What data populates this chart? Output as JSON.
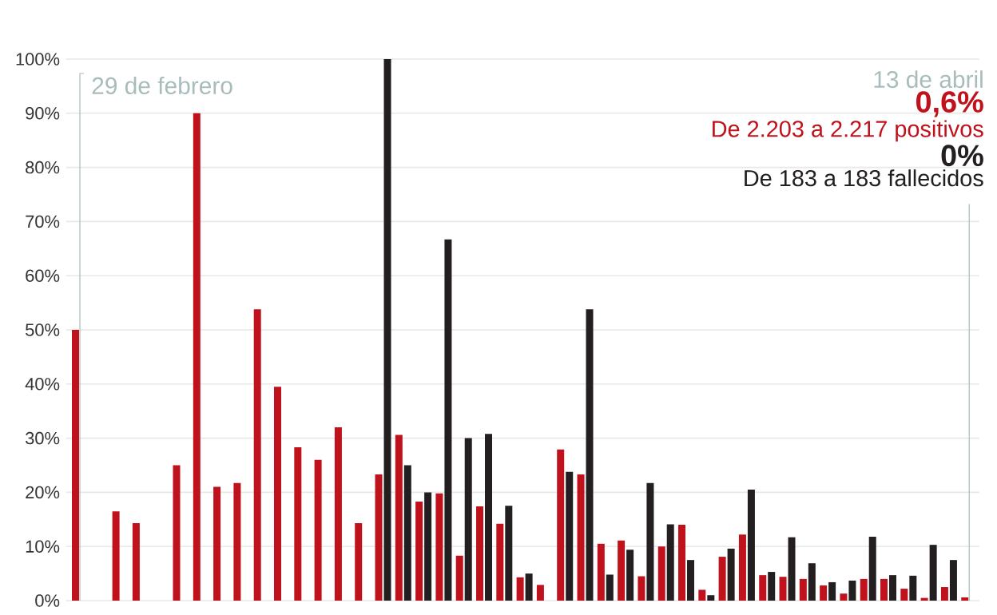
{
  "chart_data": {
    "type": "bar",
    "categories": [
      null,
      null,
      null,
      null,
      null,
      null,
      null,
      null,
      null,
      null,
      null,
      null,
      null,
      null,
      null,
      null,
      null,
      null,
      null,
      null,
      null,
      null,
      null,
      null,
      null,
      null,
      null,
      null,
      null,
      null,
      null,
      null,
      null,
      null,
      null,
      null,
      null,
      null,
      null,
      null,
      null,
      null,
      null,
      null,
      null
    ],
    "series": [
      {
        "color": "#c0121c",
        "values": [
          50,
          0,
          16.5,
          14.3,
          0,
          25,
          90,
          21,
          21.7,
          53.8,
          39.5,
          28.3,
          26,
          32,
          14.3,
          23.3,
          30.6,
          18.3,
          19.8,
          8.3,
          17.4,
          14.2,
          4.3,
          2.9,
          27.9,
          23.3,
          10.5,
          11.1,
          4.5,
          10,
          14,
          2,
          8.1,
          12.2,
          4.7,
          4.4,
          4,
          2.8,
          1.3,
          4,
          4,
          2.2,
          0.5,
          2.5,
          0.6
        ]
      },
      {
        "color": "#231f20",
        "values": [
          null,
          null,
          null,
          null,
          null,
          null,
          null,
          null,
          null,
          null,
          null,
          null,
          null,
          null,
          null,
          100,
          25,
          20,
          66.7,
          30,
          30.8,
          17.5,
          5,
          0,
          23.8,
          53.8,
          4.8,
          9.4,
          21.7,
          14.1,
          7.5,
          1,
          9.6,
          20.5,
          5.3,
          11.7,
          6.9,
          3.4,
          3.7,
          11.8,
          4.7,
          4.6,
          10.3,
          7.5,
          0
        ]
      }
    ],
    "ylim": [
      0,
      100
    ],
    "yticks": [
      {
        "value": 0,
        "label": "0%"
      },
      {
        "value": 10,
        "label": "10%"
      },
      {
        "value": 20,
        "label": "20%"
      },
      {
        "value": 30,
        "label": "30%"
      },
      {
        "value": 40,
        "label": "40%"
      },
      {
        "value": 50,
        "label": "50%"
      },
      {
        "value": 60,
        "label": "60%"
      },
      {
        "value": 70,
        "label": "70%"
      },
      {
        "value": 80,
        "label": "80%"
      },
      {
        "value": 90,
        "label": "90%"
      },
      {
        "value": 100,
        "label": "100%"
      }
    ],
    "grid": "y",
    "annotations": [
      "29 de febrero",
      "13 de abril",
      "**0,6%**",
      "De 2.203 a 2.217 positivos",
      "**0%**",
      "De 183 a 183 fallecidos"
    ]
  }
}
